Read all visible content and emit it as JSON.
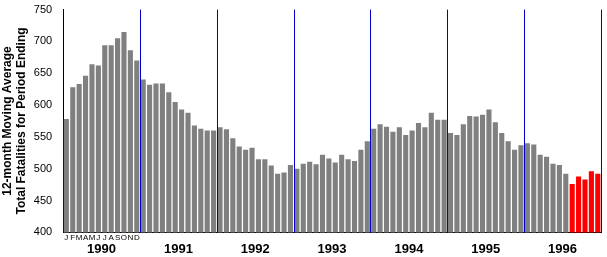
{
  "chart_data": {
    "type": "bar",
    "y_label": [
      "12-month Moving Average",
      "Total Fatalities for Period Ending"
    ],
    "categories": [
      "J",
      "F",
      "M",
      "A",
      "M",
      "J",
      "J",
      "A",
      "S",
      "O",
      "N",
      "D",
      null,
      null,
      null,
      null,
      null,
      null,
      null,
      null,
      null,
      null,
      null,
      null,
      null,
      null,
      null,
      null,
      null,
      null,
      null,
      null,
      null,
      null,
      null,
      null,
      null,
      null,
      null,
      null,
      null,
      null,
      null,
      null,
      null,
      null,
      null,
      null,
      null,
      null,
      null,
      null,
      null,
      null,
      null,
      null,
      null,
      null,
      null,
      null,
      null,
      null,
      null,
      null,
      null,
      null,
      null,
      null,
      null,
      null,
      null,
      null,
      null,
      null,
      null,
      null,
      null,
      null,
      null,
      null,
      null,
      null,
      null,
      null
    ],
    "years": [
      "1990",
      "1991",
      "1992",
      "1993",
      "1994",
      "1995",
      "1996"
    ],
    "values": [
      578,
      628,
      633,
      646,
      664,
      662,
      694,
      694,
      705,
      715,
      686,
      670,
      640,
      632,
      634,
      634,
      620,
      605,
      593,
      588,
      568,
      563,
      560,
      560,
      565,
      562,
      548,
      535,
      530,
      533,
      515,
      515,
      505,
      492,
      494,
      506,
      500,
      508,
      511,
      507,
      522,
      516,
      510,
      522,
      515,
      512,
      530,
      543,
      563,
      570,
      566,
      558,
      565,
      553,
      560,
      572,
      565,
      588,
      577,
      577,
      556,
      553,
      570,
      583,
      582,
      585,
      593,
      573,
      556,
      543,
      530,
      537,
      540,
      538,
      522,
      519,
      508,
      506,
      492,
      476,
      488,
      483,
      496,
      492
    ],
    "colors": [
      "#808080",
      "#808080",
      "#808080",
      "#808080",
      "#808080",
      "#808080",
      "#808080",
      "#808080",
      "#808080",
      "#808080",
      "#808080",
      "#808080",
      "#808080",
      "#808080",
      "#808080",
      "#808080",
      "#808080",
      "#808080",
      "#808080",
      "#808080",
      "#808080",
      "#808080",
      "#808080",
      "#808080",
      "#808080",
      "#808080",
      "#808080",
      "#808080",
      "#808080",
      "#808080",
      "#808080",
      "#808080",
      "#808080",
      "#808080",
      "#808080",
      "#808080",
      "#808080",
      "#808080",
      "#808080",
      "#808080",
      "#808080",
      "#808080",
      "#808080",
      "#808080",
      "#808080",
      "#808080",
      "#808080",
      "#808080",
      "#808080",
      "#808080",
      "#808080",
      "#808080",
      "#808080",
      "#808080",
      "#808080",
      "#808080",
      "#808080",
      "#808080",
      "#808080",
      "#808080",
      "#808080",
      "#808080",
      "#808080",
      "#808080",
      "#808080",
      "#808080",
      "#808080",
      "#808080",
      "#808080",
      "#808080",
      "#808080",
      "#808080",
      "#808080",
      "#808080",
      "#808080",
      "#808080",
      "#808080",
      "#808080",
      "#808080",
      "#ff0000",
      "#ff0000",
      "#ff0000",
      "#ff0000",
      "#ff0000"
    ],
    "ylim": [
      400,
      750
    ],
    "yticks": [
      400,
      450,
      500,
      550,
      600,
      650,
      700,
      750
    ],
    "grid": false
  }
}
